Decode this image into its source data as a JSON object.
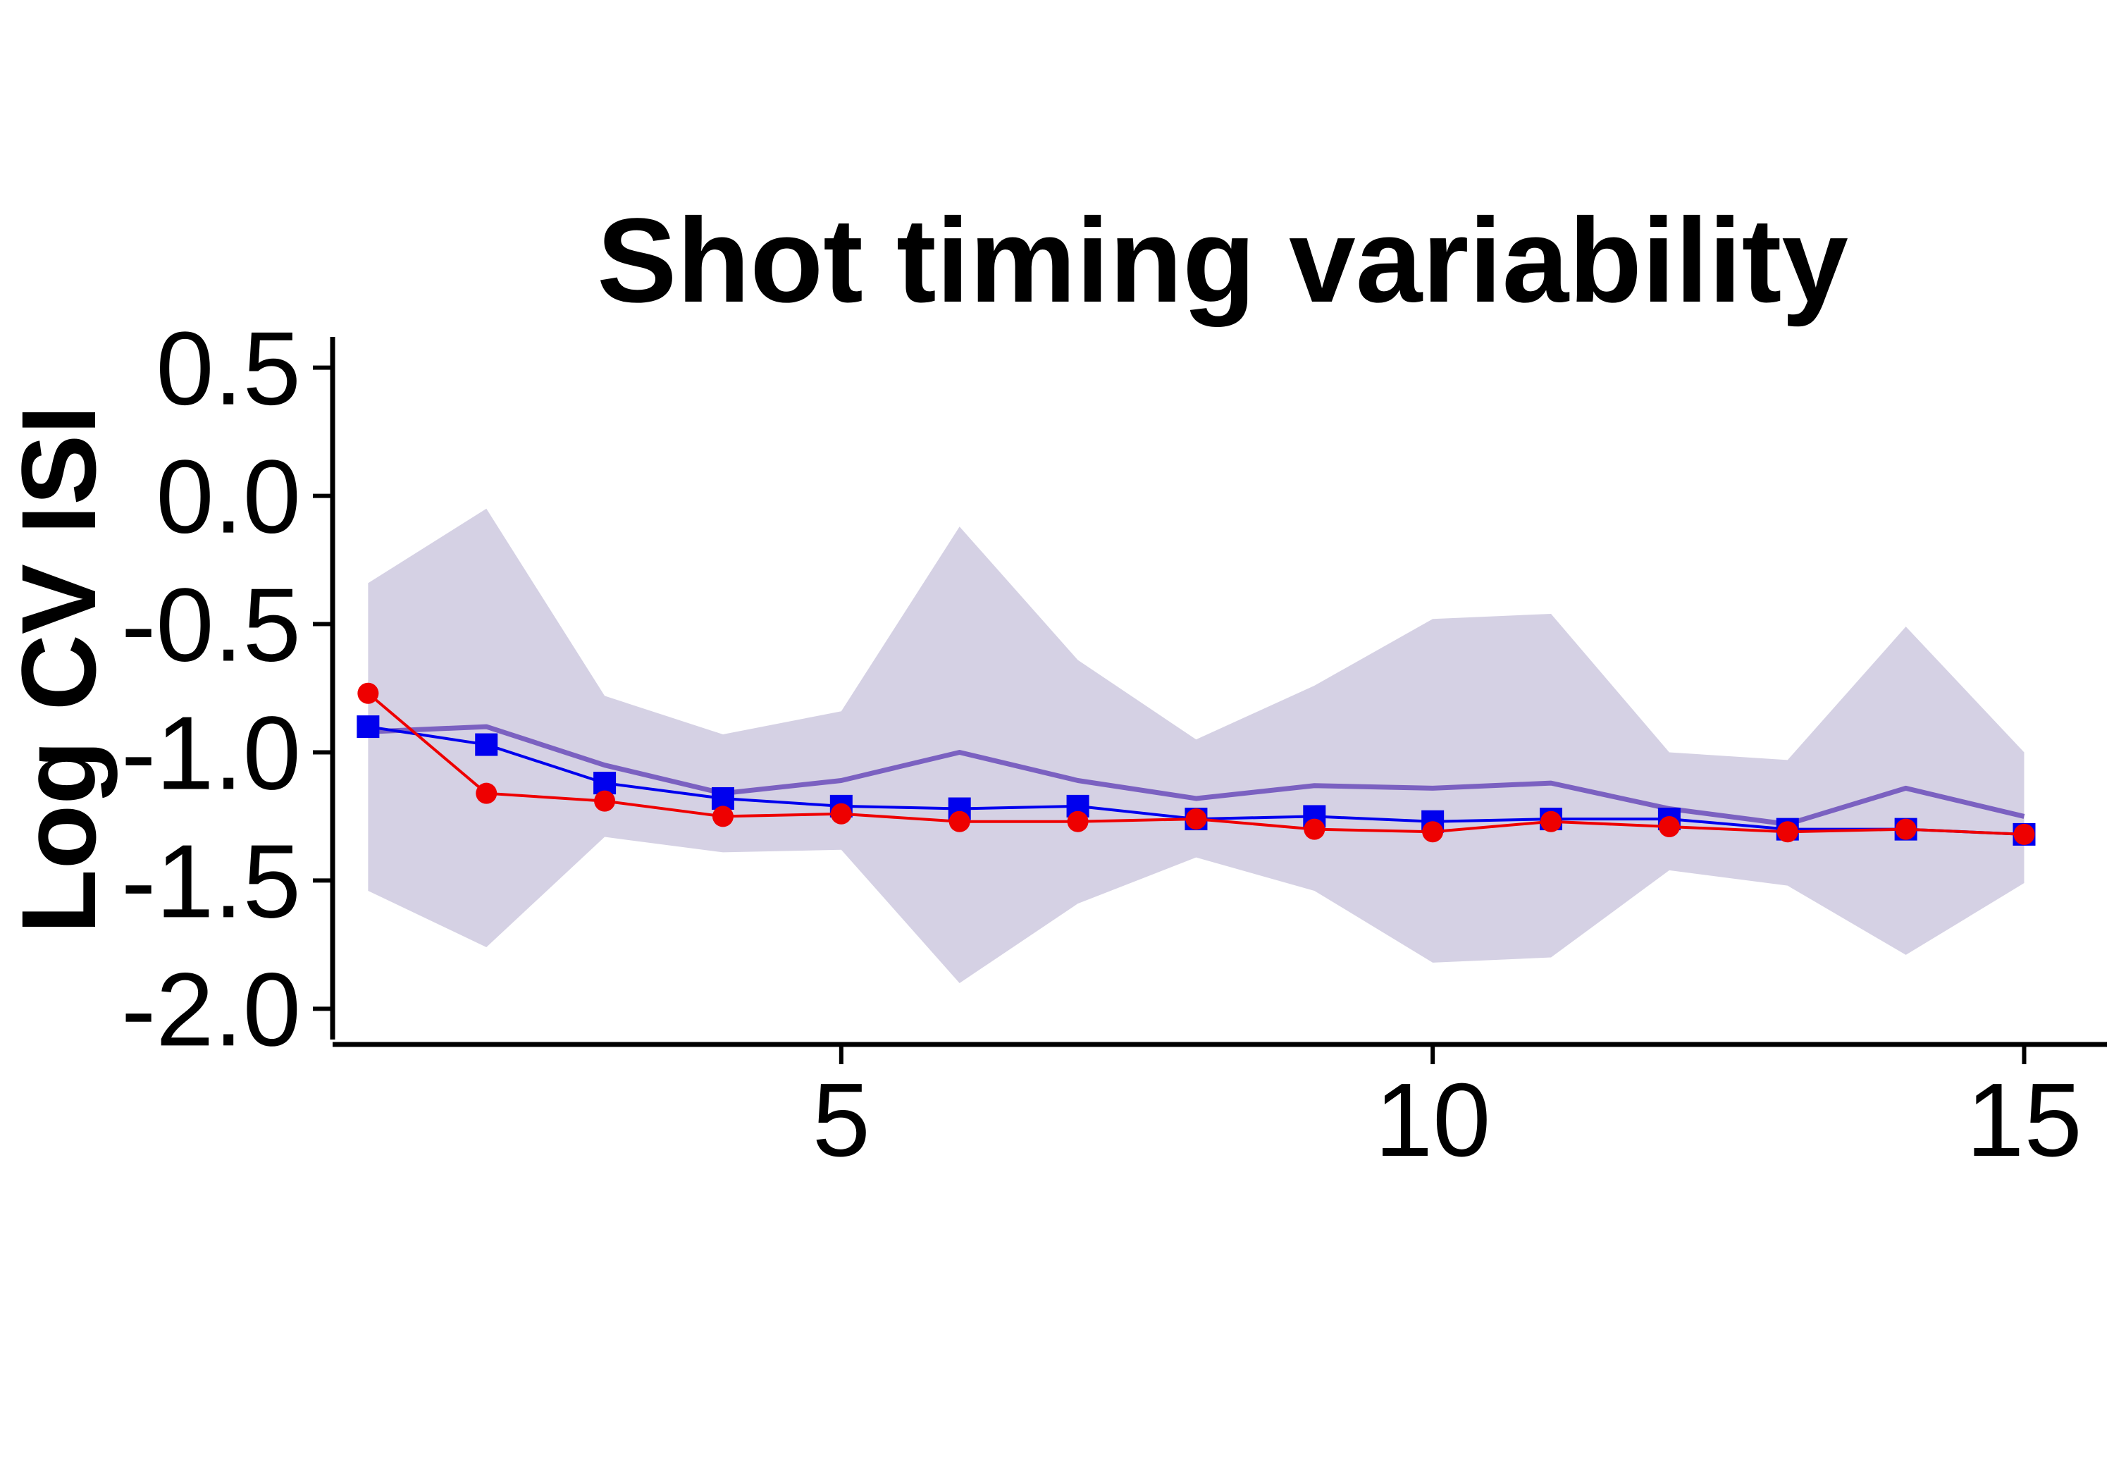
{
  "chart_data": {
    "type": "line",
    "title": "Shot timing variability",
    "xlabel": "",
    "ylabel": "Log CV ISI",
    "xlim": [
      0.7,
      15.7
    ],
    "ylim": [
      -2.12,
      0.62
    ],
    "xticks": [
      5,
      10,
      15
    ],
    "yticks": [
      0.5,
      0.0,
      -0.5,
      -1.0,
      -1.5,
      -2.0
    ],
    "ytick_labels": [
      "0.5",
      "0.0",
      "-0.5",
      "-1.0",
      "-1.5",
      "-2.0"
    ],
    "grid": false,
    "legend": "none",
    "x": [
      1,
      2,
      3,
      4,
      5,
      6,
      7,
      8,
      9,
      10,
      11,
      12,
      13,
      14,
      15
    ],
    "band": {
      "color": "#d5d1e4",
      "upper": [
        -0.34,
        -0.05,
        -0.78,
        -0.93,
        -0.84,
        -0.12,
        -0.64,
        -0.95,
        -0.74,
        -0.48,
        -0.46,
        -1.0,
        -1.03,
        -0.51,
        -1.0
      ],
      "lower": [
        -1.54,
        -1.76,
        -1.33,
        -1.39,
        -1.38,
        -1.9,
        -1.59,
        -1.41,
        -1.54,
        -1.82,
        -1.8,
        -1.46,
        -1.52,
        -1.79,
        -1.51
      ]
    },
    "series": [
      {
        "color": "#7b61c1",
        "marker": "none",
        "values": [
          -0.92,
          -0.9,
          -1.05,
          -1.16,
          -1.11,
          -1.0,
          -1.11,
          -1.18,
          -1.13,
          -1.14,
          -1.12,
          -1.22,
          -1.28,
          -1.14,
          -1.25
        ]
      },
      {
        "color": "#0000ee",
        "marker": "square",
        "values": [
          -0.9,
          -0.97,
          -1.12,
          -1.18,
          -1.21,
          -1.22,
          -1.21,
          -1.26,
          -1.25,
          -1.27,
          -1.26,
          -1.26,
          -1.3,
          -1.3,
          -1.32
        ]
      },
      {
        "color": "#ee0000",
        "marker": "circle",
        "values": [
          -0.77,
          -1.16,
          -1.19,
          -1.25,
          -1.24,
          -1.27,
          -1.27,
          -1.26,
          -1.3,
          -1.31,
          -1.27,
          -1.29,
          -1.31,
          -1.3,
          -1.32
        ]
      }
    ]
  }
}
